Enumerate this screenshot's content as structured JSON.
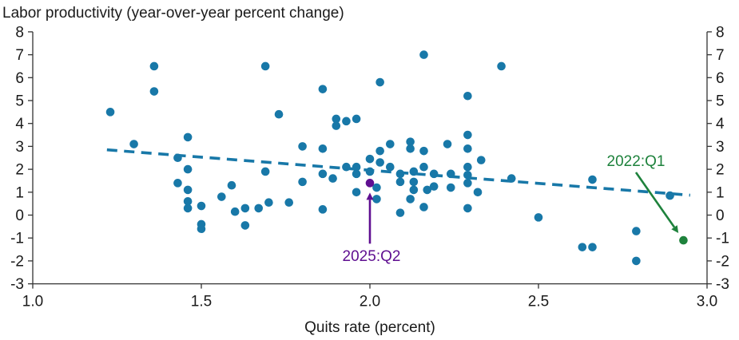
{
  "chart_data": {
    "type": "scatter",
    "title": "Labor productivity (year-over-year percent change)",
    "xlabel": "Quits rate (percent)",
    "ylabel": "",
    "xlim": [
      1.0,
      3.0
    ],
    "ylim": [
      -3,
      8
    ],
    "grid": false,
    "x_ticks": [
      {
        "value": 1.0,
        "label": "1.0"
      },
      {
        "value": 1.5,
        "label": "1.5"
      },
      {
        "value": 2.0,
        "label": "2.0"
      },
      {
        "value": 2.5,
        "label": "2.5"
      },
      {
        "value": 3.0,
        "label": "3.0"
      }
    ],
    "y_ticks": [
      {
        "value": 8,
        "label": "8"
      },
      {
        "value": 7,
        "label": "7"
      },
      {
        "value": 6,
        "label": "6"
      },
      {
        "value": 5,
        "label": "5"
      },
      {
        "value": 4,
        "label": "4"
      },
      {
        "value": 3,
        "label": "3"
      },
      {
        "value": 2,
        "label": "2"
      },
      {
        "value": 1,
        "label": "1"
      },
      {
        "value": 0,
        "label": "0"
      },
      {
        "value": -1,
        "label": "-1"
      },
      {
        "value": -2,
        "label": "-2"
      },
      {
        "value": -3,
        "label": "-3"
      }
    ],
    "series": [
      {
        "name": "quarterly-observations",
        "color": "#1878A8",
        "marker_radius": 5.3,
        "points": [
          [
            1.23,
            4.5
          ],
          [
            1.3,
            3.1
          ],
          [
            1.36,
            6.5
          ],
          [
            1.36,
            5.4
          ],
          [
            1.43,
            2.5
          ],
          [
            1.43,
            1.4
          ],
          [
            1.46,
            3.4
          ],
          [
            1.46,
            2.0
          ],
          [
            1.46,
            1.1
          ],
          [
            1.46,
            0.6
          ],
          [
            1.46,
            0.3
          ],
          [
            1.5,
            0.4
          ],
          [
            1.5,
            -0.4
          ],
          [
            1.5,
            -0.6
          ],
          [
            1.56,
            0.8
          ],
          [
            1.59,
            1.3
          ],
          [
            1.6,
            0.15
          ],
          [
            1.63,
            0.3
          ],
          [
            1.63,
            -0.45
          ],
          [
            1.67,
            0.3
          ],
          [
            1.69,
            6.5
          ],
          [
            1.69,
            1.9
          ],
          [
            1.7,
            0.55
          ],
          [
            1.73,
            4.4
          ],
          [
            1.76,
            0.55
          ],
          [
            1.8,
            3.0
          ],
          [
            1.8,
            1.45
          ],
          [
            1.86,
            5.5
          ],
          [
            1.86,
            2.9
          ],
          [
            1.86,
            1.8
          ],
          [
            1.86,
            0.25
          ],
          [
            1.89,
            1.6
          ],
          [
            1.9,
            4.2
          ],
          [
            1.9,
            3.9
          ],
          [
            1.93,
            4.1
          ],
          [
            1.93,
            2.1
          ],
          [
            1.96,
            4.2
          ],
          [
            1.96,
            2.1
          ],
          [
            1.96,
            1.8
          ],
          [
            1.96,
            1.0
          ],
          [
            2.0,
            2.45
          ],
          [
            2.0,
            1.9
          ],
          [
            2.02,
            1.2
          ],
          [
            2.02,
            0.7
          ],
          [
            2.03,
            5.8
          ],
          [
            2.03,
            2.8
          ],
          [
            2.03,
            2.3
          ],
          [
            2.06,
            3.1
          ],
          [
            2.06,
            2.1
          ],
          [
            2.09,
            1.8
          ],
          [
            2.09,
            1.45
          ],
          [
            2.09,
            0.1
          ],
          [
            2.12,
            3.2
          ],
          [
            2.12,
            2.9
          ],
          [
            2.12,
            0.7
          ],
          [
            2.13,
            1.9
          ],
          [
            2.13,
            1.45
          ],
          [
            2.13,
            1.1
          ],
          [
            2.16,
            7.0
          ],
          [
            2.16,
            2.8
          ],
          [
            2.16,
            2.1
          ],
          [
            2.17,
            1.1
          ],
          [
            2.16,
            0.35
          ],
          [
            2.19,
            1.8
          ],
          [
            2.19,
            1.25
          ],
          [
            2.23,
            3.1
          ],
          [
            2.24,
            1.8
          ],
          [
            2.24,
            1.2
          ],
          [
            2.29,
            5.2
          ],
          [
            2.29,
            3.5
          ],
          [
            2.29,
            2.9
          ],
          [
            2.29,
            2.1
          ],
          [
            2.29,
            1.75
          ],
          [
            2.29,
            1.4
          ],
          [
            2.29,
            0.3
          ],
          [
            2.32,
            1.0
          ],
          [
            2.33,
            2.4
          ],
          [
            2.39,
            6.5
          ],
          [
            2.42,
            1.6
          ],
          [
            2.5,
            -0.1
          ],
          [
            2.63,
            -1.4
          ],
          [
            2.66,
            -1.4
          ],
          [
            2.66,
            1.55
          ],
          [
            2.79,
            -0.7
          ],
          [
            2.79,
            -2.0
          ],
          [
            2.89,
            0.85
          ]
        ]
      }
    ],
    "trendline": {
      "style": "dashed",
      "color": "#1878A8",
      "x1": 1.22,
      "y1": 2.85,
      "x2": 2.95,
      "y2": 0.87
    },
    "annotations": [
      {
        "id": "a2025q2",
        "label": "2025:Q2",
        "color": "#5F0F91",
        "point": [
          2.0,
          1.4
        ],
        "arrow": "from-below",
        "label_center_x": 465,
        "label_top_y": 311
      },
      {
        "id": "a2022q1",
        "label": "2022:Q1",
        "color": "#1E823C",
        "point": [
          2.93,
          -1.1
        ],
        "arrow": "from-label",
        "label_center_x": 796,
        "label_top_y": 192
      }
    ],
    "axis_color": "#333333",
    "tick_label_color": "#1a1a1a"
  }
}
